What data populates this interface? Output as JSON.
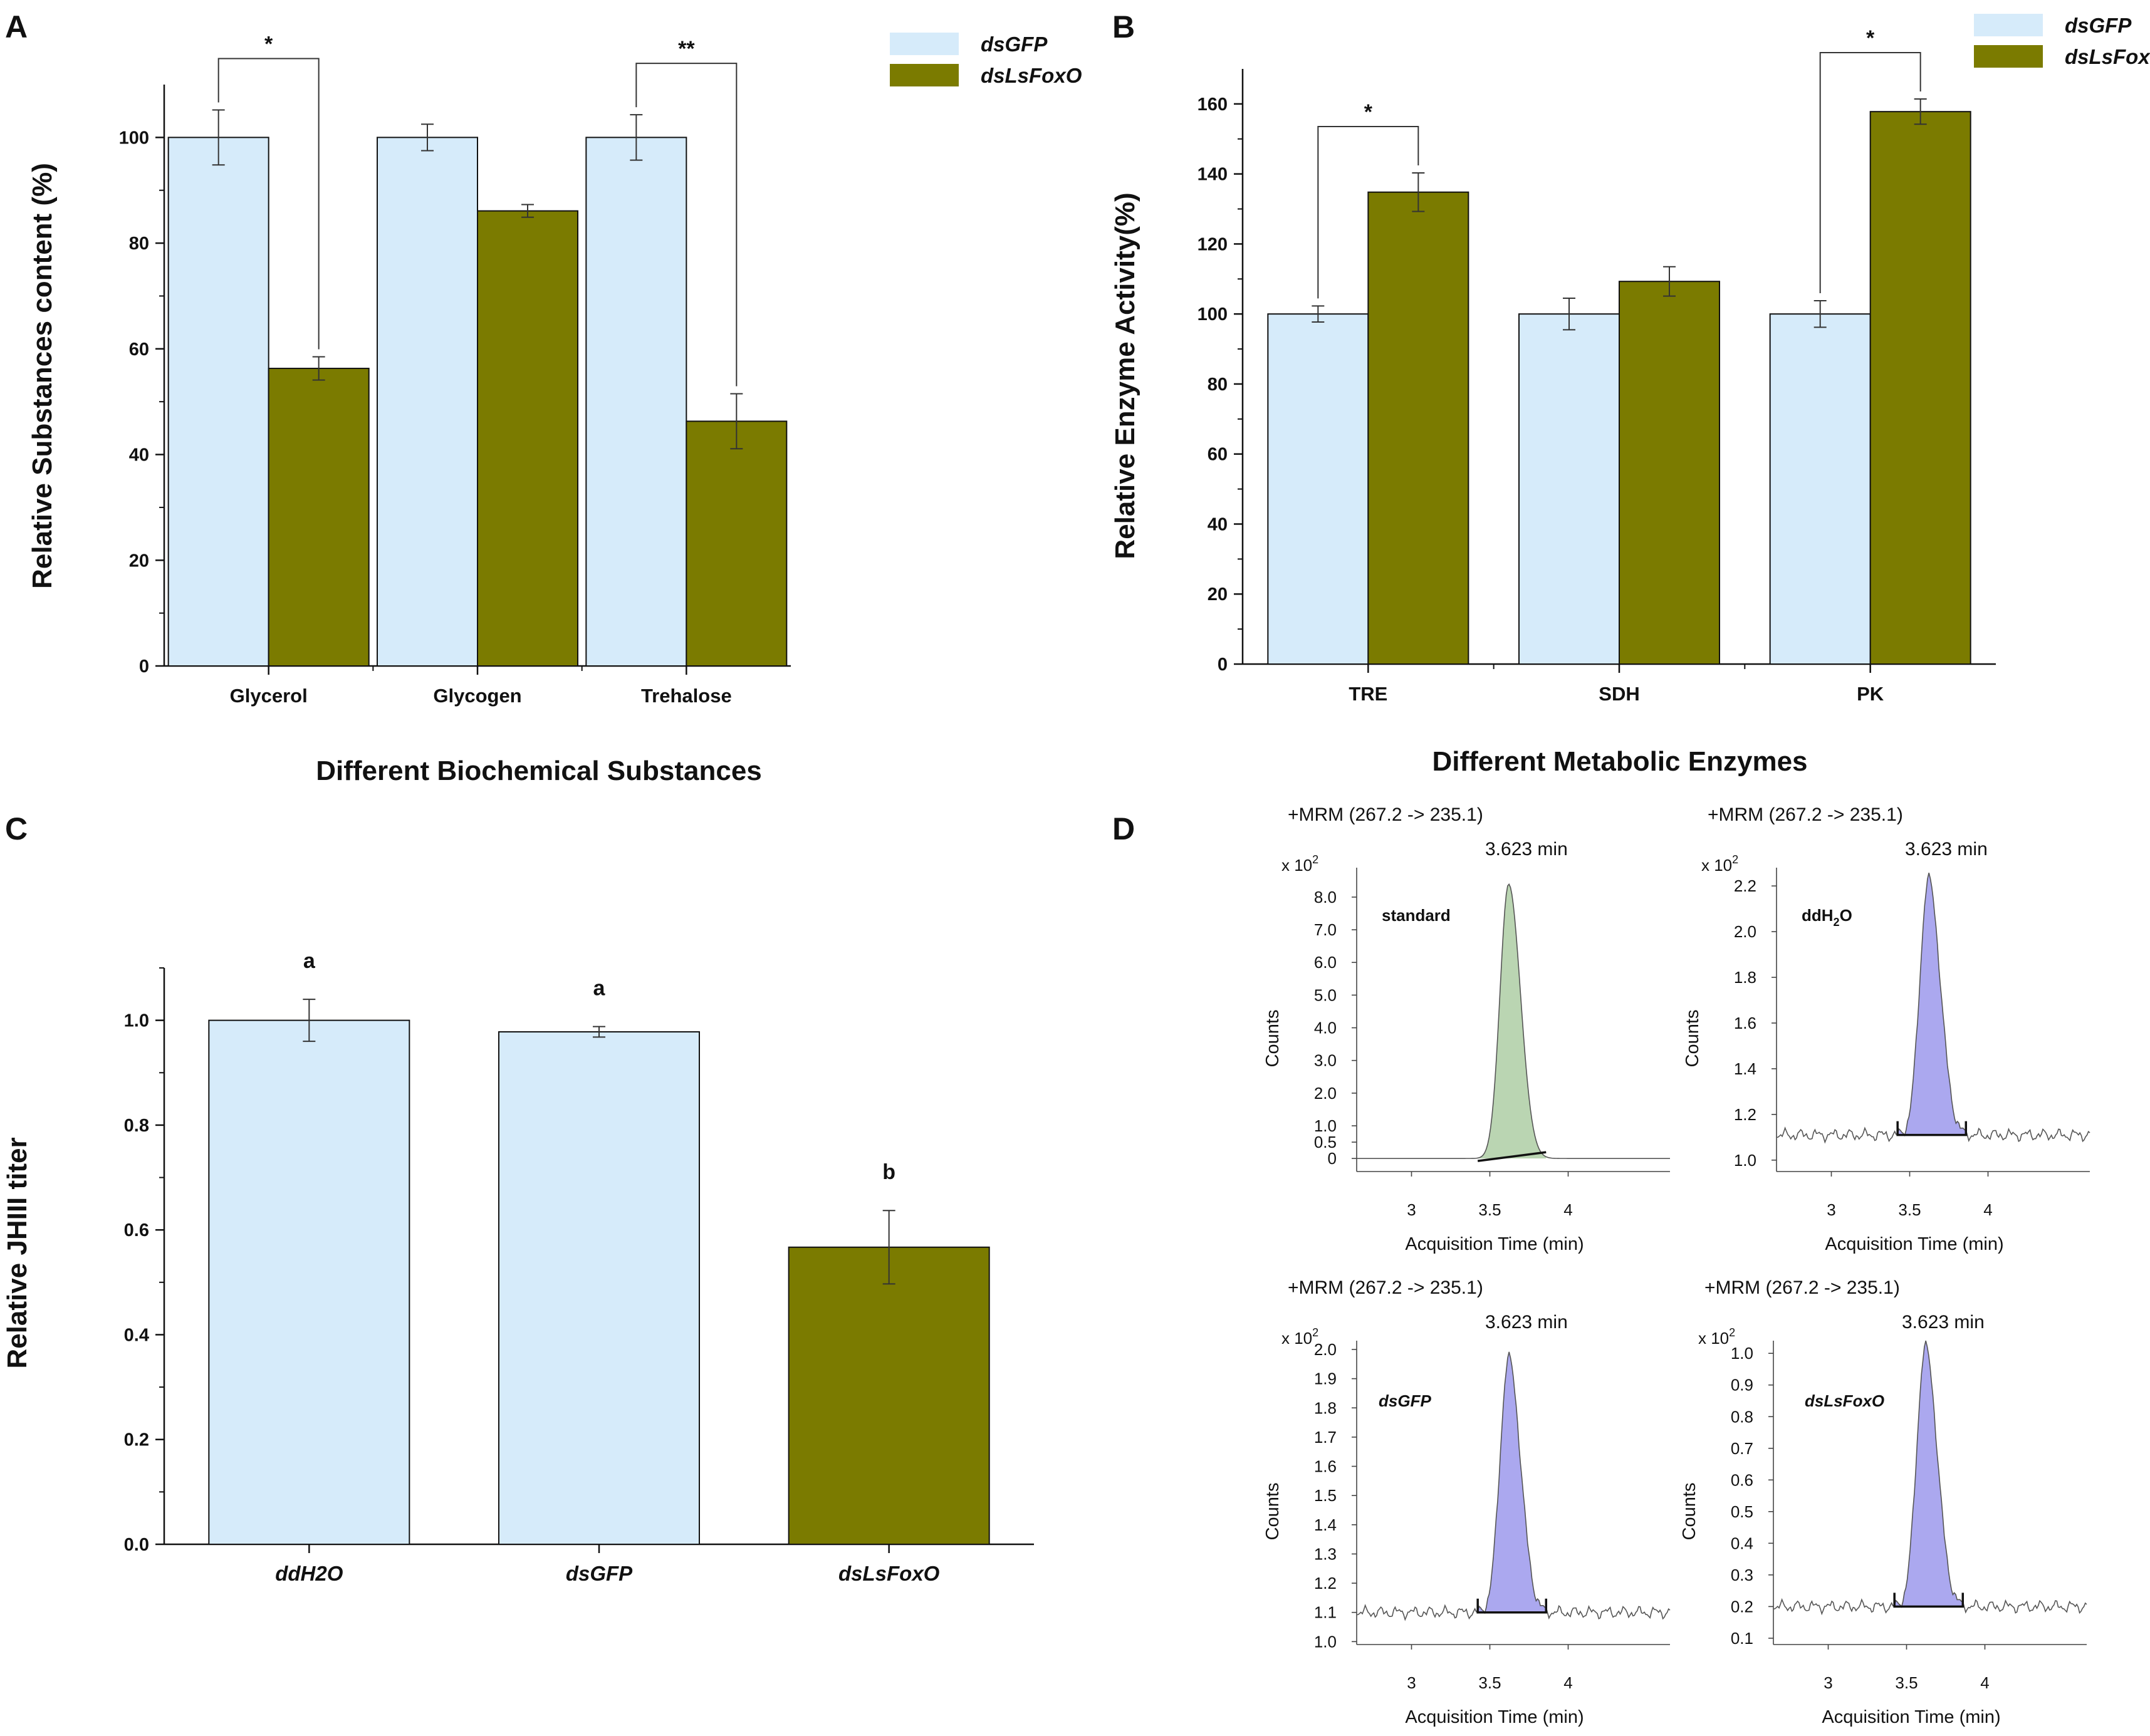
{
  "colors": {
    "dsGFP": "#d6ebfa",
    "dsLsFoxO": "#7b7b00",
    "green_peak": "#b6d3ae",
    "purple_peak": "#a7a3ee"
  },
  "panels": {
    "A": "A",
    "B": "B",
    "C": "C",
    "D": "D"
  },
  "chart_data": [
    {
      "panel": "A",
      "type": "bar",
      "title": "",
      "xlabel": "Different Biochemical Substances",
      "ylabel": "Relative Substances content (%)",
      "ylim": [
        0,
        110
      ],
      "yticks": [
        "0",
        "20",
        "40",
        "60",
        "80",
        "100"
      ],
      "categories": [
        "Glycerol",
        "Glycogen",
        "Trehalose"
      ],
      "series": [
        {
          "name": "dsGFP",
          "values": [
            100,
            100,
            100
          ],
          "errors": [
            5.2,
            2.5,
            4.3
          ]
        },
        {
          "name": "dsLsFoxO",
          "values": [
            56.3,
            86.1,
            46.3
          ],
          "errors": [
            2.2,
            1.2,
            5.2
          ]
        }
      ],
      "annotations": [
        {
          "category": 0,
          "label": "*"
        },
        {
          "category": 2,
          "label": "**"
        }
      ],
      "legend": [
        "dsGFP",
        "dsLsFoxO"
      ]
    },
    {
      "panel": "B",
      "type": "bar",
      "title": "",
      "xlabel": "Different Metabolic Enzymes",
      "ylabel": "Relative Enzyme Activity(%)",
      "ylim": [
        0,
        170
      ],
      "yticks": [
        "0",
        "20",
        "40",
        "60",
        "80",
        "100",
        "120",
        "140",
        "160"
      ],
      "categories": [
        "TRE",
        "SDH",
        "PK"
      ],
      "series": [
        {
          "name": "dsGFP",
          "values": [
            100,
            100,
            100
          ],
          "errors": [
            2.3,
            4.5,
            3.8
          ]
        },
        {
          "name": "dsLsFoxO",
          "values": [
            134.8,
            109.3,
            157.8
          ],
          "errors": [
            5.5,
            4.2,
            3.6
          ]
        }
      ],
      "annotations": [
        {
          "category": 0,
          "label": "*"
        },
        {
          "category": 2,
          "label": "*"
        }
      ],
      "legend": [
        "dsGFP",
        "dsLsFoxO"
      ]
    },
    {
      "panel": "C",
      "type": "bar",
      "title": "",
      "xlabel": "",
      "ylabel": "Relative JHIII titer",
      "ylim": [
        0,
        1.1
      ],
      "yticks": [
        "0.0",
        "0.2",
        "0.4",
        "0.6",
        "0.8",
        "1.0"
      ],
      "categories": [
        "ddH2O",
        "dsGFP",
        "dsLsFoxO"
      ],
      "values": [
        1.0,
        0.978,
        0.567
      ],
      "errors": [
        0.04,
        0.01,
        0.07
      ],
      "letters": [
        "a",
        "a",
        "b"
      ]
    },
    {
      "panel": "D",
      "type": "line",
      "chromatograms": [
        {
          "sample": "standard",
          "title": "+MRM (267.2 -> 235.1)",
          "peak_label": "3.623 min",
          "scale": "x 10",
          "scale_exp": "2",
          "ylabel": "Counts",
          "xlabel": "Acquisition Time (min)",
          "ylim": [
            -0.4,
            8.9
          ],
          "yticks": [
            "0",
            "0.5",
            "1.0",
            "2.0",
            "3.0",
            "4.0",
            "5.0",
            "6.0",
            "7.0",
            "8.0"
          ],
          "ytick_values": [
            0,
            0.5,
            1,
            2,
            3,
            4,
            5,
            6,
            7,
            8
          ],
          "xlim": [
            2.65,
            4.65
          ],
          "xticks": [
            "3",
            "3.5",
            "4"
          ],
          "xtick_values": [
            3,
            3.5,
            4
          ],
          "baseline": 0.0,
          "peak_height": 8.4,
          "peak_color": "green",
          "noise": false
        },
        {
          "sample": "ddH2O",
          "sample_main": "ddH",
          "sample_sub": "2",
          "sample_tail": "O",
          "title": "+MRM (267.2 -> 235.1)",
          "peak_label": "3.623 min",
          "scale": "x 10",
          "scale_exp": "2",
          "ylabel": "Counts",
          "xlabel": "Acquisition Time (min)",
          "ylim": [
            0.95,
            2.28
          ],
          "yticks": [
            "1.0",
            "1.2",
            "1.4",
            "1.6",
            "1.8",
            "2.0",
            "2.2"
          ],
          "ytick_values": [
            1.0,
            1.2,
            1.4,
            1.6,
            1.8,
            2.0,
            2.2
          ],
          "xlim": [
            2.65,
            4.65
          ],
          "xticks": [
            "3",
            "3.5",
            "4"
          ],
          "xtick_values": [
            3,
            3.5,
            4
          ],
          "baseline": 1.11,
          "peak_height": 2.23,
          "peak_color": "purple",
          "noise": true
        },
        {
          "sample": "dsGFP",
          "title": "+MRM (267.2 -> 235.1)",
          "peak_label": "3.623 min",
          "scale": "x 10",
          "scale_exp": "2",
          "ylabel": "Counts",
          "xlabel": "Acquisition Time (min)",
          "ylim": [
            0.99,
            2.03
          ],
          "yticks": [
            "1.0",
            "1.1",
            "1.2",
            "1.3",
            "1.4",
            "1.5",
            "1.6",
            "1.7",
            "1.8",
            "1.9",
            "2.0"
          ],
          "ytick_values": [
            1.0,
            1.1,
            1.2,
            1.3,
            1.4,
            1.5,
            1.6,
            1.7,
            1.8,
            1.9,
            2.0
          ],
          "xlim": [
            2.65,
            4.65
          ],
          "xticks": [
            "3",
            "3.5",
            "4"
          ],
          "xtick_values": [
            3,
            3.5,
            4
          ],
          "baseline": 1.1,
          "peak_height": 1.97,
          "peak_color": "purple",
          "noise": true
        },
        {
          "sample": "dsLsFoxO",
          "title": "+MRM (267.2 -> 235.1)",
          "peak_label": "3.623 min",
          "scale": "x 10",
          "scale_exp": "2",
          "ylabel": "Counts",
          "xlabel": "Acquisition Time (min)",
          "ylim": [
            0.08,
            1.04
          ],
          "yticks": [
            "0.1",
            "0.2",
            "0.3",
            "0.4",
            "0.5",
            "0.6",
            "0.7",
            "0.8",
            "0.9",
            "1.0"
          ],
          "ytick_values": [
            0.1,
            0.2,
            0.3,
            0.4,
            0.5,
            0.6,
            0.7,
            0.8,
            0.9,
            1.0
          ],
          "xlim": [
            2.65,
            4.65
          ],
          "xticks": [
            "3",
            "3.5",
            "4"
          ],
          "xtick_values": [
            3,
            3.5,
            4
          ],
          "baseline": 0.2,
          "peak_height": 1.02,
          "peak_color": "purple",
          "noise": true
        }
      ]
    }
  ]
}
